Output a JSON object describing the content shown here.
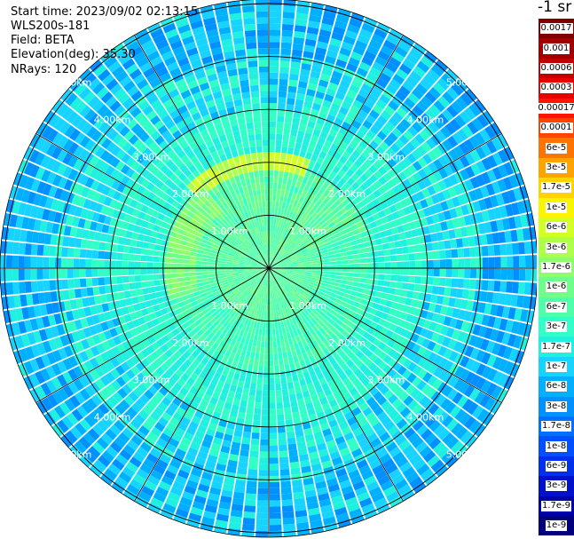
{
  "info": {
    "start_time": "Start time: 2023/09/02 02:13:15",
    "instrument": "WLS200s-181",
    "field": "Field: BETA",
    "elevation": "Elevation(deg): 35.30",
    "nrays": "NRays: 120"
  },
  "colorbar": {
    "unit": "-1 sr",
    "levels": [
      {
        "label": "0.0017",
        "color": "#7f0000"
      },
      {
        "label": "0.001",
        "color": "#a10000"
      },
      {
        "label": "0.0006",
        "color": "#c30000"
      },
      {
        "label": "0.0003",
        "color": "#e60000"
      },
      {
        "label": "0.00017",
        "color": "#ff1400"
      },
      {
        "label": "0.0001",
        "color": "#ff4400"
      },
      {
        "label": "6e-5",
        "color": "#ff7300"
      },
      {
        "label": "3e-5",
        "color": "#ffa300"
      },
      {
        "label": "1.7e-5",
        "color": "#ffd200"
      },
      {
        "label": "1e-5",
        "color": "#f8f500"
      },
      {
        "label": "6e-6",
        "color": "#d4ff23"
      },
      {
        "label": "3e-6",
        "color": "#aeff49"
      },
      {
        "label": "1.7e-6",
        "color": "#8cff6b"
      },
      {
        "label": "1e-6",
        "color": "#6dff8a"
      },
      {
        "label": "6e-7",
        "color": "#4dffaa"
      },
      {
        "label": "3e-7",
        "color": "#30ffc7"
      },
      {
        "label": "1.7e-7",
        "color": "#1ff0e0"
      },
      {
        "label": "1e-7",
        "color": "#16d4ff"
      },
      {
        "label": "6e-8",
        "color": "#00b0ff"
      },
      {
        "label": "3e-8",
        "color": "#0090ff"
      },
      {
        "label": "1.7e-8",
        "color": "#0070ff"
      },
      {
        "label": "1e-8",
        "color": "#0050ff"
      },
      {
        "label": "6e-9",
        "color": "#0030ee"
      },
      {
        "label": "3e-9",
        "color": "#0010cc"
      },
      {
        "label": "1.7e-9",
        "color": "#0000a8"
      },
      {
        "label": "1e-9",
        "color": "#00007f"
      }
    ]
  },
  "chart_data": {
    "type": "heatmap",
    "projection": "polar PPI",
    "nrays": 120,
    "elevation_deg": 35.3,
    "range_ring_labels_km": [
      "1.00km",
      "2.00km",
      "3.00km",
      "4.00km",
      "5.00km"
    ],
    "range_rings_km": [
      1,
      2,
      3,
      4,
      5
    ],
    "grid": true,
    "azimuth_lines_deg": [
      0,
      30,
      60,
      90,
      120,
      150,
      180,
      210,
      240,
      270,
      300,
      330
    ],
    "field": "BETA",
    "description_values": {
      "near_range_0_2km": "3e-7 to 1.7e-6",
      "arc_2km_north": "1e-5 to 3e-6",
      "mid_range_2_4km": "1e-7 to 3e-7",
      "far_range_4_5_km": "6e-9 to 6e-8"
    }
  }
}
